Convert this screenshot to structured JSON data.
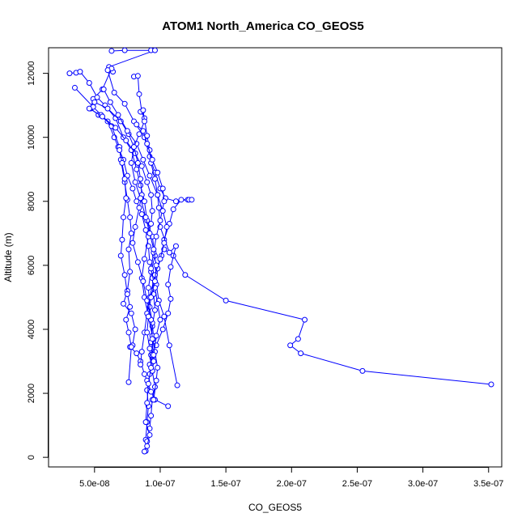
{
  "chart_data": {
    "type": "scatter",
    "title": "ATOM1 North_America CO_GEOS5",
    "xlabel": "CO_GEOS5",
    "ylabel": "Altitude (m)",
    "xlim": [
      1.5e-08,
      3.6e-07
    ],
    "ylim": [
      -300,
      12800
    ],
    "xticks": [
      {
        "value": 5e-08,
        "label": "5.0e-08"
      },
      {
        "value": 1e-07,
        "label": "1.0e-07"
      },
      {
        "value": 1.5e-07,
        "label": "1.5e-07"
      },
      {
        "value": 2e-07,
        "label": "2.0e-07"
      },
      {
        "value": 2.5e-07,
        "label": "2.5e-07"
      },
      {
        "value": 3e-07,
        "label": "3.0e-07"
      },
      {
        "value": 3.5e-07,
        "label": "3.5e-07"
      }
    ],
    "yticks": [
      {
        "value": 0,
        "label": "0"
      },
      {
        "value": 2000,
        "label": "2000"
      },
      {
        "value": 4000,
        "label": "4000"
      },
      {
        "value": 6000,
        "label": "6000"
      },
      {
        "value": 8000,
        "label": "8000"
      },
      {
        "value": 10000,
        "label": "10000"
      },
      {
        "value": 12000,
        "label": "12000"
      }
    ],
    "color": "#0000ff",
    "marker": "open-circle",
    "grid": false,
    "series": [
      {
        "points": [
          [
            6.3e-08,
            12700
          ],
          [
            7.3e-08,
            12720
          ],
          [
            9.3e-08,
            12720
          ],
          [
            9.6e-08,
            12720
          ],
          [
            6.1e-08,
            12200
          ],
          [
            6.4e-08,
            12050
          ],
          [
            6.3e-08,
            12150
          ],
          [
            5.6e-08,
            11500
          ],
          [
            4.9e-08,
            11200
          ],
          [
            4.7e-08,
            10900
          ],
          [
            5.3e-08,
            10700
          ],
          [
            6e-08,
            10500
          ],
          [
            6.5e-08,
            10000
          ],
          [
            6.8e-08,
            9700
          ],
          [
            7.2e-08,
            9300
          ],
          [
            7.5e-08,
            8800
          ],
          [
            7.9e-08,
            8400
          ],
          [
            8.2e-08,
            8000
          ],
          [
            8.6e-08,
            7600
          ],
          [
            8.9e-08,
            7100
          ],
          [
            9.1e-08,
            6600
          ],
          [
            9.2e-08,
            6100
          ],
          [
            9.4e-08,
            5600
          ],
          [
            9.5e-08,
            5100
          ],
          [
            9.6e-08,
            4600
          ],
          [
            9.4e-08,
            4100
          ],
          [
            9.3e-08,
            3600
          ],
          [
            9.4e-08,
            3100
          ],
          [
            9.2e-08,
            2600
          ],
          [
            9e-08,
            2100
          ],
          [
            9.1e-08,
            1600
          ],
          [
            9e-08,
            1100
          ],
          [
            8.9e-08,
            550
          ],
          [
            8.9e-08,
            200
          ]
        ]
      },
      {
        "points": [
          [
            3.1e-08,
            12000
          ],
          [
            3.6e-08,
            12020
          ],
          [
            3.9e-08,
            12050
          ],
          [
            4.6e-08,
            11700
          ],
          [
            5.2e-08,
            11250
          ],
          [
            5.8e-08,
            11000
          ],
          [
            6.6e-08,
            10600
          ],
          [
            7.2e-08,
            10000
          ],
          [
            7.8e-08,
            9600
          ],
          [
            8.2e-08,
            9000
          ],
          [
            8.5e-08,
            8500
          ],
          [
            8.8e-08,
            8000
          ],
          [
            9e-08,
            7400
          ],
          [
            9.4e-08,
            6900
          ],
          [
            9.6e-08,
            6300
          ],
          [
            9.3e-08,
            5800
          ],
          [
            9.1e-08,
            5300
          ],
          [
            9.2e-08,
            4700
          ],
          [
            9.4e-08,
            4200
          ],
          [
            9.5e-08,
            3700
          ],
          [
            9.3e-08,
            3200
          ],
          [
            9.4e-08,
            2700
          ],
          [
            9.6e-08,
            2200
          ],
          [
            9.4e-08,
            1800
          ],
          [
            9.3e-08,
            1300
          ],
          [
            9.2e-08,
            900
          ],
          [
            9e-08,
            500
          ],
          [
            8.8e-08,
            180
          ]
        ]
      },
      {
        "points": [
          [
            3.5e-08,
            11550
          ],
          [
            4.9e-08,
            10950
          ],
          [
            5.5e-08,
            10700
          ],
          [
            6.3e-08,
            10350
          ],
          [
            6.9e-08,
            9700
          ],
          [
            7e-08,
            9300
          ],
          [
            7.3e-08,
            8600
          ],
          [
            7.5e-08,
            8050
          ],
          [
            7.7e-08,
            7500
          ],
          [
            7.8e-08,
            7000
          ],
          [
            7.6e-08,
            6500
          ],
          [
            7.7e-08,
            5800
          ],
          [
            7.5e-08,
            5200
          ],
          [
            7.2e-08,
            4800
          ],
          [
            7.8e-08,
            4500
          ],
          [
            8.1e-08,
            4000
          ],
          [
            7.9e-08,
            3500
          ],
          [
            7.7e-08,
            3450
          ],
          [
            8.2e-08,
            3250
          ],
          [
            8.5e-08,
            3000
          ],
          [
            8.8e-08,
            2600
          ],
          [
            9e-08,
            2400
          ],
          [
            9.3e-08,
            2050
          ],
          [
            9.6e-08,
            1800
          ],
          [
            1.06e-07,
            1600
          ]
        ]
      },
      {
        "points": [
          [
            1.03e-07,
            6500
          ],
          [
            1.1e-07,
            6300
          ],
          [
            1.19e-07,
            5700
          ],
          [
            1.5e-07,
            4900
          ],
          [
            2.1e-07,
            4300
          ],
          [
            2.05e-07,
            3700
          ],
          [
            1.99e-07,
            3500
          ],
          [
            2.07e-07,
            3250
          ],
          [
            2.54e-07,
            2700
          ],
          [
            3.52e-07,
            2280
          ]
        ]
      },
      {
        "points": [
          [
            6e-08,
            12100
          ],
          [
            6.5e-08,
            11400
          ],
          [
            7.3e-08,
            11050
          ],
          [
            8e-08,
            10500
          ],
          [
            8.8e-08,
            10000
          ],
          [
            9.2e-08,
            9400
          ],
          [
            9.6e-08,
            8900
          ],
          [
            1e-07,
            8400
          ],
          [
            1.04e-07,
            8100
          ],
          [
            1.12e-07,
            8000
          ],
          [
            1.21e-07,
            8050
          ],
          [
            1.22e-07,
            8050
          ],
          [
            1.24e-07,
            8050
          ],
          [
            1.16e-07,
            8050
          ],
          [
            1.1e-07,
            7750
          ],
          [
            1.07e-07,
            7300
          ],
          [
            1.03e-07,
            6800
          ],
          [
            1.01e-07,
            6300
          ],
          [
            9.8e-08,
            5900
          ],
          [
            9.7e-08,
            5400
          ],
          [
            9.9e-08,
            4900
          ],
          [
            1.03e-07,
            4400
          ],
          [
            1.07e-07,
            3500
          ],
          [
            1.13e-07,
            2250
          ]
        ]
      },
      {
        "points": [
          [
            8e-08,
            11900
          ],
          [
            8.3e-08,
            11920
          ],
          [
            8.4e-08,
            11350
          ],
          [
            8.6e-08,
            10800
          ],
          [
            8.8e-08,
            10600
          ],
          [
            9e-08,
            10050
          ],
          [
            9.2e-08,
            9600
          ],
          [
            9.3e-08,
            9200
          ],
          [
            9.6e-08,
            8700
          ],
          [
            9.8e-08,
            8200
          ],
          [
            9.9e-08,
            7800
          ],
          [
            1e-07,
            7200
          ],
          [
            1.07e-07,
            6400
          ],
          [
            1.12e-07,
            6600
          ],
          [
            1.08e-07,
            5950
          ],
          [
            1.06e-07,
            5400
          ],
          [
            1.08e-07,
            4950
          ],
          [
            1.06e-07,
            4500
          ],
          [
            1.02e-07,
            4000
          ],
          [
            9.7e-08,
            3500
          ]
        ]
      },
      {
        "points": [
          [
            4.6e-08,
            10900
          ],
          [
            5.6e-08,
            10650
          ],
          [
            6.6e-08,
            10300
          ],
          [
            7.4e-08,
            9900
          ],
          [
            8.1e-08,
            9500
          ],
          [
            8.6e-08,
            9100
          ],
          [
            9e-08,
            8600
          ],
          [
            9.3e-08,
            8200
          ],
          [
            9.4e-08,
            7700
          ],
          [
            9.3e-08,
            7300
          ],
          [
            9.1e-08,
            6900
          ],
          [
            8.8e-08,
            6200
          ],
          [
            8.6e-08,
            5600
          ],
          [
            8.8e-08,
            5000
          ],
          [
            9.1e-08,
            4400
          ],
          [
            9.4e-08,
            3800
          ],
          [
            9.6e-08,
            3300
          ],
          [
            9.8e-08,
            2800
          ],
          [
            9.7e-08,
            2400
          ],
          [
            9.5e-08,
            1800
          ]
        ]
      },
      {
        "points": [
          [
            5e-08,
            11100
          ],
          [
            6e-08,
            10900
          ],
          [
            7e-08,
            10500
          ],
          [
            7.6e-08,
            10100
          ],
          [
            8e-08,
            9700
          ],
          [
            8.3e-08,
            9200
          ],
          [
            8.5e-08,
            8700
          ],
          [
            8.6e-08,
            8200
          ],
          [
            8.4e-08,
            7800
          ],
          [
            8.1e-08,
            7200
          ],
          [
            7.9e-08,
            6700
          ],
          [
            8.3e-08,
            6100
          ],
          [
            8.7e-08,
            5500
          ],
          [
            9e-08,
            4900
          ],
          [
            9.3e-08,
            4300
          ],
          [
            9.4e-08,
            3700
          ],
          [
            9.5e-08,
            3000
          ],
          [
            9.4e-08,
            2700
          ]
        ]
      },
      {
        "points": [
          [
            6.9e-08,
            9600
          ],
          [
            7.1e-08,
            9200
          ],
          [
            7.3e-08,
            8700
          ],
          [
            7.4e-08,
            8100
          ],
          [
            7.2e-08,
            7500
          ],
          [
            7.1e-08,
            6800
          ],
          [
            7e-08,
            6300
          ],
          [
            7.3e-08,
            5700
          ],
          [
            7.5e-08,
            5100
          ],
          [
            7.7e-08,
            4700
          ],
          [
            7.4e-08,
            4300
          ],
          [
            7.6e-08,
            3900
          ],
          [
            7.8e-08,
            3450
          ],
          [
            7.6e-08,
            2350
          ]
        ]
      },
      {
        "points": [
          [
            8.2e-08,
            10400
          ],
          [
            8.7e-08,
            10200
          ],
          [
            9e-08,
            9800
          ],
          [
            9.4e-08,
            9300
          ],
          [
            9.8e-08,
            8900
          ],
          [
            1.02e-07,
            8400
          ],
          [
            1.03e-07,
            8000
          ],
          [
            1e-07,
            7400
          ],
          [
            9.7e-08,
            6900
          ],
          [
            9.5e-08,
            6400
          ],
          [
            9.3e-08,
            5900
          ],
          [
            9.6e-08,
            5300
          ],
          [
            9.8e-08,
            4800
          ],
          [
            1e-07,
            4300
          ],
          [
            9.7e-08,
            3800
          ],
          [
            9.5e-08,
            3200
          ],
          [
            9.2e-08,
            2900
          ]
        ]
      },
      {
        "points": [
          [
            5.7e-08,
            11500
          ],
          [
            6.2e-08,
            11100
          ],
          [
            6.8e-08,
            10700
          ],
          [
            7.5e-08,
            10200
          ],
          [
            8.2e-08,
            9800
          ],
          [
            8.7e-08,
            9300
          ],
          [
            9.2e-08,
            8800
          ],
          [
            9.8e-08,
            8200
          ],
          [
            1.02e-07,
            7700
          ],
          [
            1.05e-07,
            7200
          ],
          [
            1.03e-07,
            6700
          ],
          [
            1e-07,
            6200
          ],
          [
            9.6e-08,
            5700
          ],
          [
            9.2e-08,
            5000
          ],
          [
            9e-08,
            4500
          ],
          [
            8.8e-08,
            3900
          ],
          [
            8.6e-08,
            3300
          ],
          [
            8.5e-08,
            2900
          ]
        ]
      },
      {
        "points": [
          [
            8.5e-08,
            10800
          ],
          [
            8.7e-08,
            10850
          ],
          [
            8.8e-08,
            10500
          ],
          [
            8.4e-08,
            10100
          ],
          [
            8e-08,
            9700
          ],
          [
            7.8e-08,
            9200
          ],
          [
            8.1e-08,
            8600
          ],
          [
            8.5e-08,
            8100
          ],
          [
            8.9e-08,
            7500
          ],
          [
            9.2e-08,
            7000
          ],
          [
            9.5e-08,
            6500
          ],
          [
            9.7e-08,
            6000
          ],
          [
            9.6e-08,
            5500
          ],
          [
            9.3e-08,
            5000
          ],
          [
            9.1e-08,
            4400
          ],
          [
            9e-08,
            3900
          ],
          [
            9.2e-08,
            3400
          ],
          [
            9.3e-08,
            2800
          ],
          [
            9.1e-08,
            2300
          ],
          [
            9e-08,
            1700
          ],
          [
            8.9e-08,
            1100
          ],
          [
            9.2e-08,
            700
          ],
          [
            9e-08,
            350
          ]
        ]
      }
    ]
  }
}
